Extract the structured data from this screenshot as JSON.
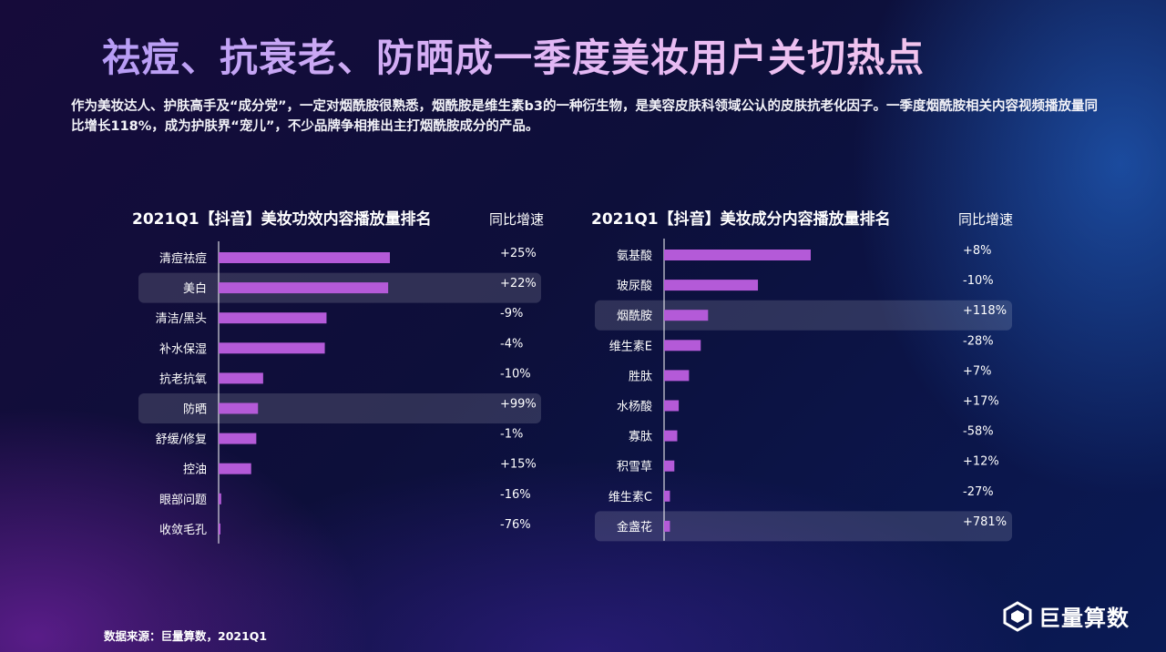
{
  "title": "祛痘、抗衰老、防晒成一季度美妆用户关切热点",
  "description": "作为美妆达人、护肤高手及“成分党”，一定对烟酰胺很熟悉，烟酰胺是维生素b3的一种衍生物，是美容皮肤科领域公认的皮肤抗老化因子。一季度烟酰胺相关内容视频播放量同比增长118%，成为护肤界“宠儿”，不少品牌争相推出主打烟酰胺成分的产品。",
  "footer": "数据来源：巨量算数，2021Q1",
  "logo_text": "巨量算数",
  "colors": {
    "bar": "#b45ad8",
    "highlight": "#ffffff"
  },
  "chart_data": [
    {
      "type": "bar",
      "orientation": "horizontal",
      "title": "2021Q1【抖音】美妆功效内容播放量排名",
      "yoy_header": "同比增速",
      "categories": [
        "清痘祛痘",
        "美白",
        "清洁/黑头",
        "补水保湿",
        "抗老抗氧",
        "防晒",
        "舒缓/修复",
        "控油",
        "眼部问题",
        "收敛毛孔"
      ],
      "values": [
        100,
        99,
        63,
        62,
        26,
        23,
        22,
        19,
        1.5,
        1
      ],
      "yoy": [
        "+25%",
        "+22%",
        "-9%",
        "-4%",
        "-10%",
        "+99%",
        "-1%",
        "+15%",
        "-16%",
        "-76%"
      ],
      "highlighted": [
        "美白",
        "防晒"
      ]
    },
    {
      "type": "bar",
      "orientation": "horizontal",
      "title": "2021Q1【抖音】美妆成分内容播放量排名",
      "yoy_header": "同比增速",
      "categories": [
        "氨基酸",
        "玻尿酸",
        "烟酰胺",
        "维生素E",
        "胜肽",
        "水杨酸",
        "寡肽",
        "积雪草",
        "维生素C",
        "金盏花"
      ],
      "values": [
        100,
        64,
        30,
        25,
        17,
        10,
        9,
        7,
        4,
        4
      ],
      "yoy": [
        "+8%",
        "-10%",
        "+118%",
        "-28%",
        "+7%",
        "+17%",
        "-58%",
        "+12%",
        "-27%",
        "+781%"
      ],
      "highlighted": [
        "烟酰胺",
        "金盏花"
      ]
    }
  ]
}
